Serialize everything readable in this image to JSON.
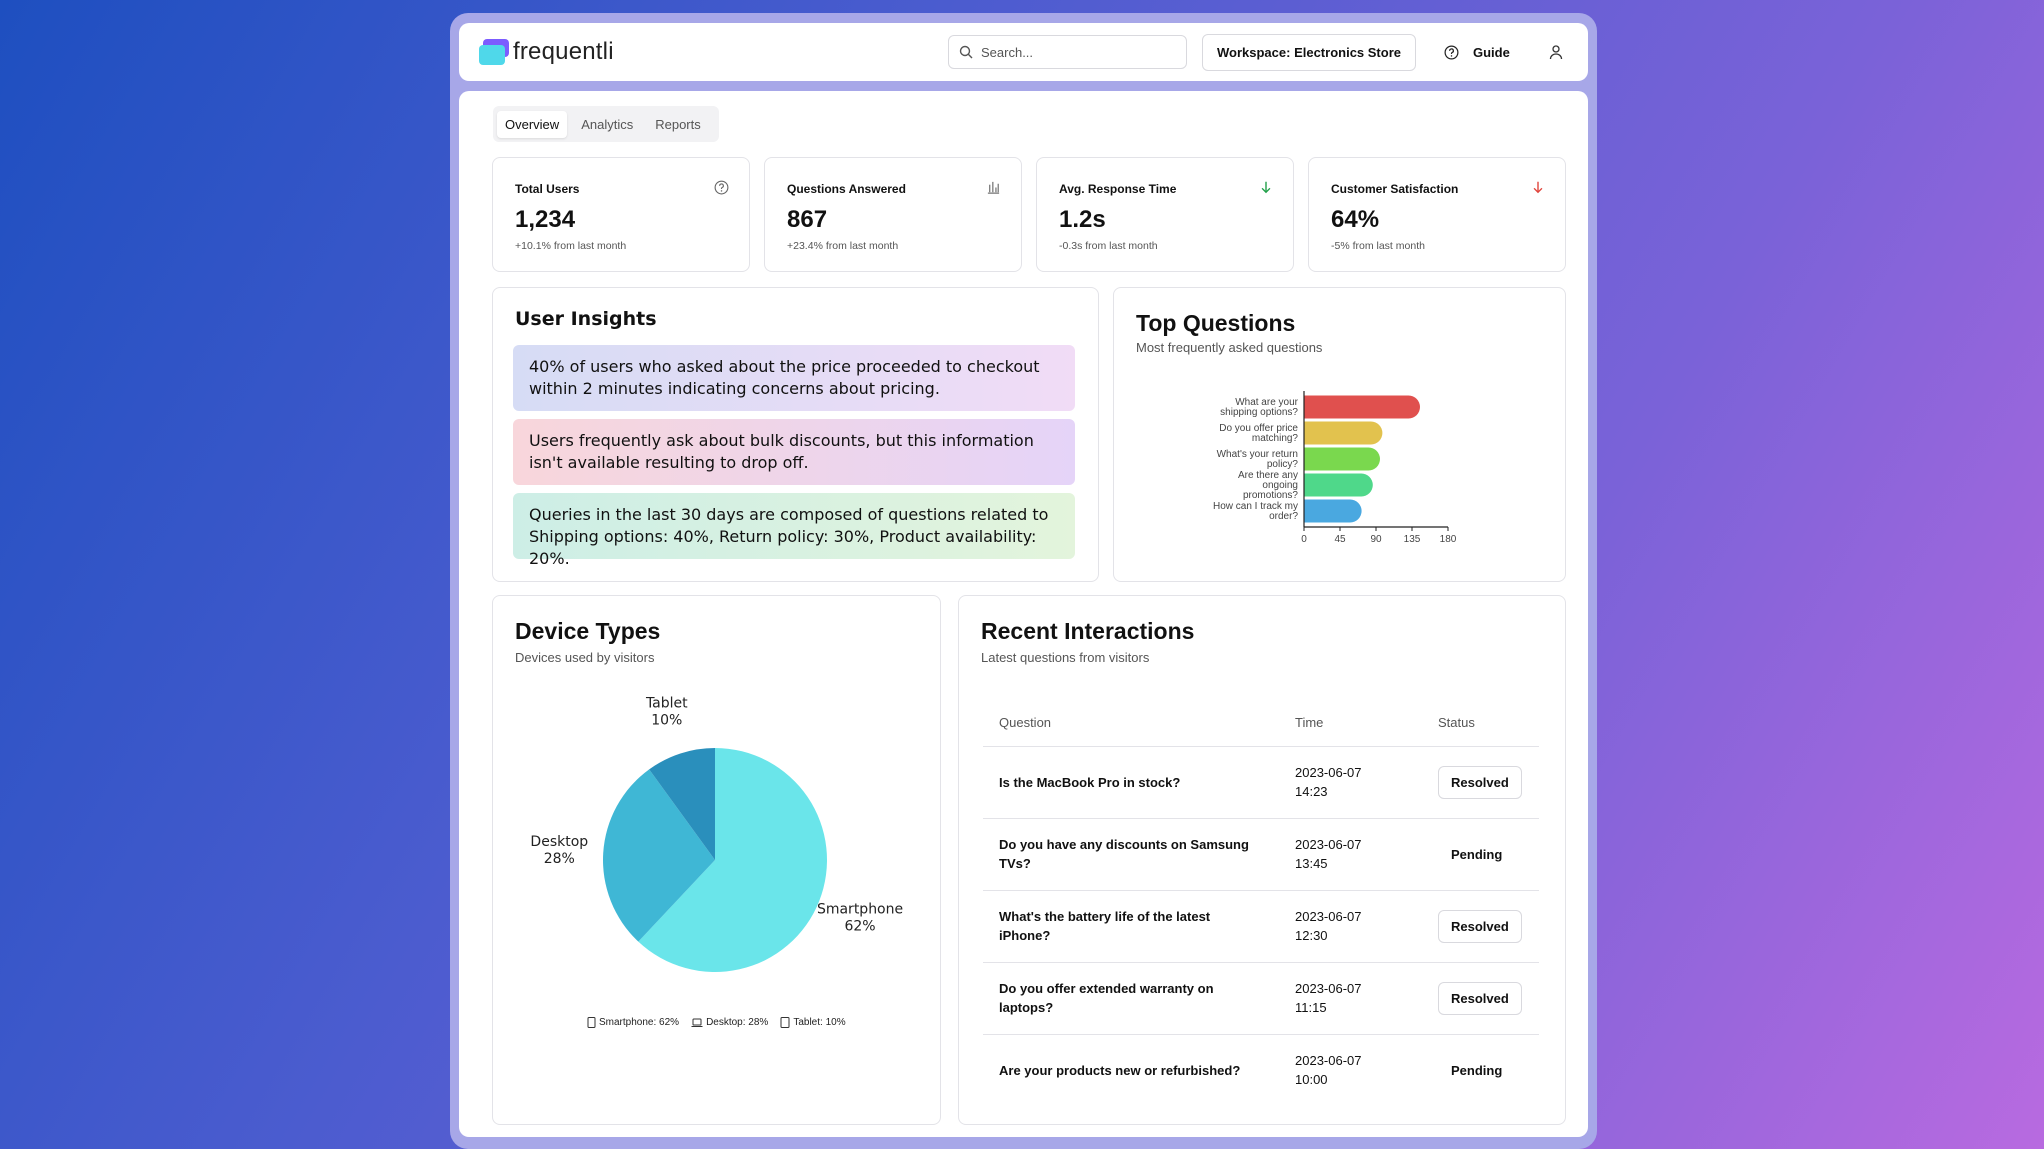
{
  "app": {
    "name": "frequentli"
  },
  "header": {
    "search_placeholder": "Search...",
    "workspace_label": "Workspace: Electronics Store",
    "guide_label": "Guide"
  },
  "tabs": [
    {
      "label": "Overview",
      "active": true
    },
    {
      "label": "Analytics",
      "active": false
    },
    {
      "label": "Reports",
      "active": false
    }
  ],
  "stats": [
    {
      "title": "Total Users",
      "value": "1,234",
      "sub": "+10.1% from last month",
      "icon": "help-circle-icon"
    },
    {
      "title": "Questions Answered",
      "value": "867",
      "sub": "+23.4% from last month",
      "icon": "bar-chart-icon"
    },
    {
      "title": "Avg. Response Time",
      "value": "1.2s",
      "sub": "-0.3s from last month",
      "icon": "arrow-down-icon",
      "icon_color": "#22a04a"
    },
    {
      "title": "Customer Satisfaction",
      "value": "64%",
      "sub": "-5% from last month",
      "icon": "arrow-down-icon",
      "icon_color": "#e0443c"
    }
  ],
  "insights": {
    "title": "User Insights",
    "items": [
      "40% of users who asked about the price proceeded to checkout within 2 minutes indicating concerns about pricing.",
      "Users frequently ask about bulk discounts, but this information isn't available resulting to drop off.",
      "Queries in the last 30 days are composed of questions related to Shipping options: 40%, Return policy: 30%, Product availability: 20%."
    ]
  },
  "top_questions": {
    "title": "Top Questions",
    "subtitle": "Most frequently asked questions"
  },
  "device_types": {
    "title": "Device Types",
    "subtitle": "Devices used by visitors",
    "legend": [
      "Smartphone: 62%",
      "Desktop: 28%",
      "Tablet: 10%"
    ]
  },
  "recent": {
    "title": "Recent Interactions",
    "subtitle": "Latest questions from visitors",
    "columns": [
      "Question",
      "Time",
      "Status"
    ],
    "rows": [
      {
        "question": "Is the MacBook Pro in stock?",
        "date": "2023-06-07",
        "time": "14:23",
        "status": "Resolved"
      },
      {
        "question": "Do you have any discounts on Samsung TVs?",
        "date": "2023-06-07",
        "time": "13:45",
        "status": "Pending"
      },
      {
        "question": "What's the battery life of the latest iPhone?",
        "date": "2023-06-07",
        "time": "12:30",
        "status": "Resolved"
      },
      {
        "question": "Do you offer extended warranty on laptops?",
        "date": "2023-06-07",
        "time": "11:15",
        "status": "Resolved"
      },
      {
        "question": "Are your products new or refurbished?",
        "date": "2023-06-07",
        "time": "10:00",
        "status": "Pending"
      }
    ]
  },
  "chart_data": [
    {
      "type": "bar",
      "orientation": "horizontal",
      "categories": [
        "What are your shipping options?",
        "Do you offer price matching?",
        "What's your return policy?",
        "Are there any ongoing promotions?",
        "How can I track my order?"
      ],
      "category_lines": [
        [
          "What are your",
          "shipping options?"
        ],
        [
          "Do you offer price",
          "matching?"
        ],
        [
          "What's your return",
          "policy?"
        ],
        [
          "Are there any",
          "ongoing",
          "promotions?"
        ],
        [
          "How can I track my",
          "order?"
        ]
      ],
      "values": [
        145,
        98,
        95,
        86,
        72
      ],
      "colors": [
        "#e0504e",
        "#e2c24e",
        "#7ad84e",
        "#4fd88a",
        "#4aa8e0"
      ],
      "xticks": [
        "0",
        "45",
        "90",
        "135",
        "180"
      ],
      "xlim": [
        0,
        180
      ]
    },
    {
      "type": "pie",
      "labels": [
        "Smartphone",
        "Desktop",
        "Tablet"
      ],
      "values": [
        62,
        28,
        10
      ],
      "value_labels": [
        "62%",
        "28%",
        "10%"
      ],
      "colors": [
        "#6ae5ea",
        "#3fb7d5",
        "#2a8fbc"
      ]
    }
  ]
}
